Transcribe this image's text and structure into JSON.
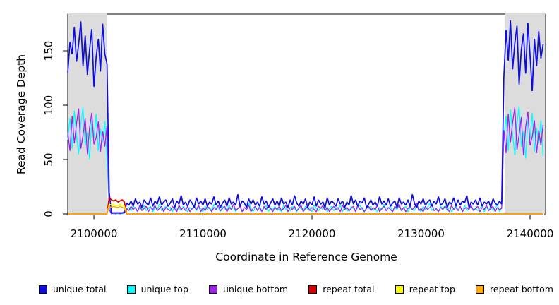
{
  "figure": {
    "x_axis_label": "Coordinate in Reference Genome",
    "y_axis_label": "Read Coverage Depth"
  },
  "chart_data": {
    "type": "line",
    "title": "",
    "xlabel": "Coordinate in Reference Genome",
    "ylabel": "Read Coverage Depth",
    "x_range": [
      2097600,
      2141360
    ],
    "y_range": [
      0,
      183
    ],
    "x_ticks": [
      2100000,
      2110000,
      2120000,
      2130000,
      2140000
    ],
    "y_ticks": [
      0,
      50,
      100,
      150
    ],
    "grid": false,
    "legend_position": "bottom",
    "background_color": "#FFFFFF",
    "highlight_color": "#DCDCDC",
    "highlight_regions": [
      {
        "x0": 2097600,
        "x1": 2101230
      },
      {
        "x0": 2137730,
        "x1": 2141360
      }
    ],
    "x_start": 2097600,
    "x_step": 200,
    "n_points": 219,
    "draw_order": [
      1,
      2,
      0,
      3,
      4,
      5
    ],
    "series": [
      {
        "name": "unique total",
        "color": "#0D0DE0",
        "line_width": 1.7,
        "values": [
          130,
          158,
          147,
          172,
          140,
          156,
          177,
          136,
          164,
          128,
          151,
          170,
          117,
          144,
          161,
          131,
          175,
          147,
          138,
          20,
          1,
          1,
          1,
          1,
          1,
          1,
          1,
          10,
          8,
          12,
          7,
          14,
          9,
          11,
          6,
          13,
          10,
          8,
          15,
          7,
          12,
          9,
          16,
          8,
          11,
          13,
          7,
          10,
          14,
          6,
          12,
          9,
          17,
          8,
          11,
          7,
          13,
          10,
          6,
          15,
          9,
          12,
          8,
          14,
          7,
          11,
          9,
          16,
          8,
          12,
          6,
          10,
          13,
          7,
          15,
          9,
          11,
          8,
          18,
          7,
          12,
          10,
          6,
          14,
          9,
          13,
          8,
          11,
          7,
          16,
          9,
          12,
          6,
          10,
          14,
          8,
          12,
          7,
          15,
          9,
          11,
          6,
          13,
          8,
          17,
          10,
          7,
          12,
          9,
          14,
          6,
          11,
          8,
          16,
          7,
          13,
          9,
          11,
          6,
          15,
          8,
          12,
          10,
          7,
          14,
          9,
          12,
          6,
          11,
          8,
          17,
          9,
          13,
          7,
          12,
          10,
          15,
          6,
          9,
          13,
          8,
          11,
          7,
          16,
          9,
          12,
          8,
          14,
          7,
          10,
          12,
          6,
          15,
          9,
          11,
          8,
          13,
          7,
          18,
          10,
          6,
          12,
          9,
          14,
          8,
          11,
          13,
          7,
          12,
          9,
          16,
          8,
          10,
          14,
          6,
          11,
          9,
          15,
          7,
          13,
          8,
          12,
          10,
          17,
          6,
          11,
          9,
          13,
          8,
          15,
          7,
          11,
          9,
          12,
          6,
          14,
          10,
          8,
          12,
          9,
          126,
          169,
          141,
          178,
          133,
          157,
          173,
          119,
          151,
          166,
          129,
          176,
          146,
          113,
          161,
          136,
          168,
          143,
          156
        ]
      },
      {
        "name": "unique top",
        "color": "#00FFFF",
        "line_width": 1.3,
        "values": [
          68,
          88,
          60,
          95,
          72,
          55,
          82,
          98,
          63,
          75,
          50,
          87,
          70,
          92,
          58,
          78,
          66,
          85,
          52,
          5,
          1,
          0,
          1,
          0,
          1,
          0,
          2,
          4,
          6,
          3,
          7,
          5,
          2,
          6,
          4,
          8,
          3,
          5,
          7,
          2,
          6,
          4,
          9,
          3,
          5,
          7,
          4,
          6,
          2,
          8,
          4,
          5,
          3,
          7,
          5,
          2,
          6,
          4,
          8,
          3,
          6,
          5,
          2,
          7,
          4,
          6,
          3,
          9,
          4,
          6,
          2,
          7,
          5,
          3,
          8,
          4,
          6,
          2,
          5,
          7,
          3,
          6,
          4,
          10,
          5,
          2,
          6,
          4,
          7,
          3,
          5,
          8,
          2,
          6,
          4,
          7,
          3,
          5,
          2,
          8,
          4,
          6,
          3,
          7,
          5,
          2,
          6,
          5,
          3,
          7,
          4,
          6,
          2,
          8,
          5,
          3,
          6,
          4,
          9,
          2,
          5,
          7,
          3,
          6,
          4,
          8,
          2,
          6,
          4,
          2,
          7,
          5,
          3,
          6,
          8,
          4,
          2,
          6,
          5,
          7,
          3,
          5,
          2,
          6,
          4,
          9,
          3,
          5,
          7,
          2,
          6,
          4,
          8,
          3,
          5,
          7,
          2,
          6,
          4,
          3,
          8,
          5,
          2,
          7,
          4,
          6,
          10,
          3,
          6,
          4,
          2,
          7,
          5,
          8,
          3,
          6,
          2,
          5,
          7,
          4,
          6,
          2,
          8,
          3,
          5,
          7,
          4,
          6,
          3,
          5,
          8,
          2,
          6,
          4,
          7,
          3,
          5,
          9,
          2,
          6,
          70,
          90,
          58,
          96,
          73,
          54,
          84,
          99,
          62,
          76,
          51,
          88,
          69,
          93,
          57,
          79,
          65,
          86,
          53
        ]
      },
      {
        "name": "unique bottom",
        "color": "#A020F0",
        "line_width": 1.3,
        "values": [
          75,
          58,
          90,
          65,
          83,
          97,
          60,
          72,
          88,
          55,
          79,
          93,
          64,
          70,
          85,
          57,
          76,
          62,
          81,
          4,
          0,
          1,
          0,
          1,
          0,
          1,
          2,
          5,
          3,
          7,
          4,
          6,
          2,
          8,
          3,
          5,
          7,
          2,
          6,
          4,
          8,
          3,
          5,
          7,
          2,
          6,
          4,
          3,
          7,
          5,
          2,
          8,
          4,
          6,
          3,
          7,
          2,
          5,
          6,
          4,
          8,
          2,
          6,
          3,
          7,
          5,
          2,
          6,
          4,
          8,
          3,
          5,
          7,
          2,
          6,
          4,
          9,
          3,
          5,
          7,
          2,
          6,
          4,
          8,
          2,
          5,
          7,
          3,
          6,
          2,
          7,
          4,
          8,
          5,
          2,
          6,
          4,
          7,
          3,
          5,
          8,
          2,
          6,
          4,
          7,
          3,
          5,
          8,
          2,
          5,
          7,
          3,
          6,
          4,
          2,
          7,
          5,
          8,
          3,
          6,
          2,
          5,
          7,
          4,
          6,
          2,
          8,
          4,
          6,
          3,
          5,
          7,
          2,
          8,
          4,
          6,
          2,
          5,
          7,
          3,
          6,
          4,
          8,
          2,
          5,
          7,
          3,
          6,
          4,
          2,
          7,
          5,
          9,
          3,
          6,
          2,
          5,
          7,
          4,
          6,
          10,
          3,
          5,
          2,
          7,
          4,
          6,
          8,
          3,
          5,
          2,
          6,
          4,
          7,
          5,
          2,
          8,
          4,
          6,
          3,
          7,
          2,
          5,
          6,
          4,
          8,
          3,
          5,
          7,
          2,
          6,
          4,
          8,
          3,
          5,
          7,
          2,
          6,
          4,
          5,
          77,
          56,
          92,
          66,
          84,
          98,
          59,
          73,
          89,
          54,
          80,
          94,
          63,
          71,
          86,
          56,
          77,
          63,
          82
        ]
      },
      {
        "name": "repeat total",
        "color": "#DD0000",
        "line_width": 1.8,
        "baseline": 0,
        "segment": {
          "start_index": 19,
          "values": [
            15,
            13,
            12,
            13,
            11,
            12,
            13,
            11
          ]
        }
      },
      {
        "name": "repeat top",
        "color": "#FFFF00",
        "line_width": 1.5,
        "baseline": 0,
        "segment": {
          "start_index": 19,
          "values": [
            9,
            8,
            9,
            7,
            8,
            9,
            8,
            7
          ]
        }
      },
      {
        "name": "repeat bottom",
        "color": "#FFA500",
        "line_width": 1.4,
        "baseline": 0,
        "segment": {
          "start_index": 19,
          "values": [
            7,
            6,
            7,
            6,
            6,
            7,
            6,
            5
          ]
        }
      }
    ]
  }
}
